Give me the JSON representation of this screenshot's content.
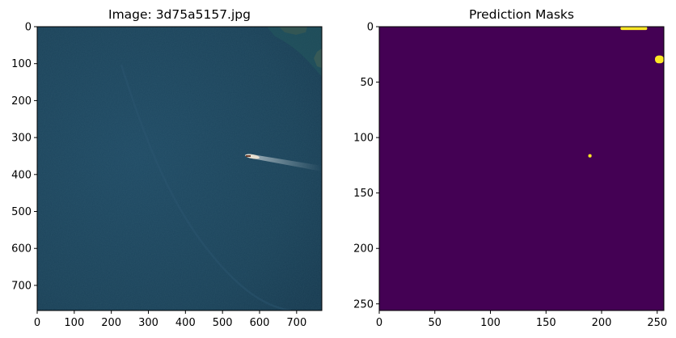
{
  "chart_data": [
    {
      "type": "image",
      "title": "Image: 3d75a5157.jpg",
      "xlim": [
        0,
        768
      ],
      "ylim": [
        768,
        0
      ],
      "xticks": [
        0,
        100,
        200,
        300,
        400,
        500,
        600,
        700
      ],
      "yticks": [
        0,
        100,
        200,
        300,
        400,
        500,
        600,
        700
      ],
      "content": "satellite photo of open sea with a ship and its wake",
      "colors": {
        "sea": "#1d4560",
        "sea_dark": "#163a52",
        "ship": "#e6e0d2",
        "rocks": "#4a5448"
      }
    },
    {
      "type": "heatmap",
      "title": "Prediction Masks",
      "xlim": [
        0,
        256
      ],
      "ylim": [
        256,
        0
      ],
      "xticks": [
        0,
        50,
        100,
        150,
        200,
        250
      ],
      "yticks": [
        0,
        50,
        100,
        150,
        200,
        250
      ],
      "colormap": "viridis",
      "background_color": "#440154",
      "mask_color": "#fde725",
      "blobs": [
        {
          "label": "top-edge mask",
          "x_range": [
            217,
            241
          ],
          "y_range": [
            0,
            3
          ]
        },
        {
          "label": "right-edge mask",
          "x_range": [
            248,
            256
          ],
          "y_range": [
            26,
            33
          ]
        },
        {
          "label": "ship mask",
          "x_range": [
            188,
            191
          ],
          "y_range": [
            115,
            118
          ]
        }
      ]
    }
  ]
}
